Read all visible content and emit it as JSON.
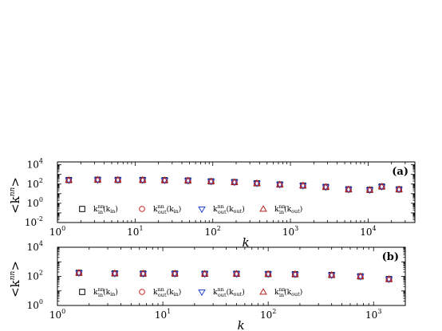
{
  "ylabel": "<k^nn>",
  "xlabel": "k",
  "chart_data": [
    {
      "type": "scatter",
      "panel": "(a)",
      "xscale": "log",
      "yscale": "log",
      "xlim": [
        1,
        40000
      ],
      "ylim": [
        0.01,
        20000
      ],
      "x_tick_labels": [
        "10^0",
        "10^1",
        "10^2",
        "10^3",
        "10^4"
      ],
      "y_tick_labels": [
        "10^-2",
        "10^0",
        "10^2",
        "10^4"
      ],
      "xlabel": "k",
      "ylabel": "<k^nn>",
      "legend_placement": "bottom",
      "series": [
        {
          "name": "k_in^nn(k_in)",
          "marker": "square",
          "color": "#000000",
          "x": [
            1.4,
            3.3,
            6,
            12.5,
            24,
            48,
            95,
            190,
            370,
            730,
            1450,
            2850,
            5600,
            10500,
            15000,
            25000
          ],
          "y": [
            260,
            280,
            270,
            265,
            250,
            230,
            190,
            160,
            120,
            90,
            70,
            50,
            28,
            25,
            55,
            28
          ]
        },
        {
          "name": "k_out^nn(k_in)",
          "marker": "circle",
          "color": "#d22020",
          "x": [
            1.4,
            3.3,
            6,
            12.5,
            24,
            48,
            95,
            190,
            370,
            730,
            1450,
            2850,
            5600,
            10500,
            15000,
            25000
          ],
          "y": [
            260,
            280,
            270,
            265,
            250,
            230,
            190,
            160,
            120,
            90,
            70,
            50,
            28,
            25,
            55,
            28
          ]
        },
        {
          "name": "k_out^nn(k_out)",
          "marker": "triangle-down",
          "color": "#2040d0",
          "x": [
            1.4,
            3.3,
            6,
            12.5,
            24,
            48,
            95,
            190,
            370,
            730,
            1450,
            2850,
            5600,
            10500,
            15000,
            25000
          ],
          "y": [
            260,
            280,
            270,
            265,
            250,
            230,
            190,
            160,
            120,
            90,
            70,
            50,
            28,
            25,
            55,
            28
          ]
        },
        {
          "name": "k_in^nn(k_out)",
          "marker": "triangle-up",
          "color": "#b02020",
          "x": [
            1.4,
            3.3,
            6,
            12.5,
            24,
            48,
            95,
            190,
            370,
            730,
            1450,
            2850,
            5600,
            10500,
            15000,
            25000
          ],
          "y": [
            260,
            280,
            270,
            265,
            250,
            230,
            190,
            160,
            120,
            90,
            70,
            50,
            28,
            25,
            55,
            28
          ]
        }
      ]
    },
    {
      "type": "scatter",
      "panel": "(b)",
      "xscale": "log",
      "yscale": "log",
      "xlim": [
        1,
        2000
      ],
      "ylim": [
        1,
        10000
      ],
      "x_tick_labels": [
        "10^0",
        "10^1",
        "10^2",
        "10^3"
      ],
      "y_tick_labels": [
        "10^0",
        "10^2",
        "10^4"
      ],
      "xlabel": "k",
      "ylabel": "<k^nn>",
      "legend_placement": "bottom",
      "series": [
        {
          "name": "k_in^nn(k_in)",
          "marker": "square",
          "color": "#000000",
          "x": [
            1.6,
            3.5,
            6.5,
            13,
            25,
            50,
            100,
            180,
            400,
            750,
            1400
          ],
          "y": [
            175,
            160,
            155,
            155,
            150,
            150,
            145,
            140,
            125,
            100,
            65
          ]
        },
        {
          "name": "k_out^nn(k_in)",
          "marker": "circle",
          "color": "#d22020",
          "x": [
            1.6,
            3.5,
            6.5,
            13,
            25,
            50,
            100,
            180,
            400,
            750,
            1400
          ],
          "y": [
            175,
            160,
            155,
            155,
            150,
            150,
            145,
            140,
            125,
            100,
            65
          ]
        },
        {
          "name": "k_out^nn(k_out)",
          "marker": "triangle-down",
          "color": "#2040d0",
          "x": [
            1.6,
            3.5,
            6.5,
            13,
            25,
            50,
            100,
            180,
            400,
            750,
            1400
          ],
          "y": [
            175,
            160,
            155,
            155,
            150,
            150,
            145,
            140,
            125,
            100,
            65
          ]
        },
        {
          "name": "k_in^nn(k_out)",
          "marker": "triangle-up",
          "color": "#b02020",
          "x": [
            1.6,
            3.5,
            6.5,
            13,
            25,
            50,
            100,
            180,
            400,
            750,
            1400
          ],
          "y": [
            175,
            160,
            155,
            155,
            150,
            150,
            145,
            140,
            125,
            100,
            65
          ]
        }
      ]
    }
  ]
}
